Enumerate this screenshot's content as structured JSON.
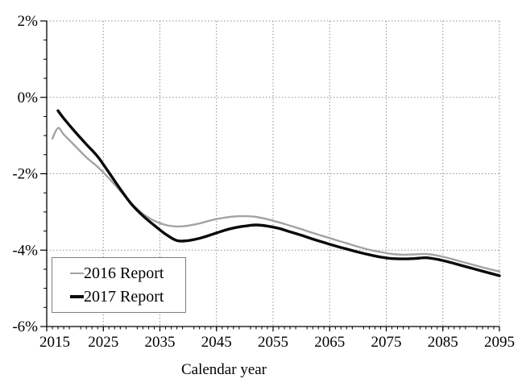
{
  "chart_data": {
    "type": "line",
    "title": "",
    "xlabel": "Calendar year",
    "ylabel": "",
    "x_axis": {
      "min": 2015,
      "max": 2095,
      "major_tick_interval": 10,
      "minor_tick_interval": 1,
      "tick_values": [
        2015,
        2025,
        2035,
        2045,
        2055,
        2065,
        2075,
        2085,
        2095
      ],
      "tick_labels": [
        "2015",
        "2025",
        "2035",
        "2045",
        "2055",
        "2065",
        "2075",
        "2085",
        "2095"
      ]
    },
    "y_axis": {
      "min": -6,
      "max": 2,
      "major_tick_interval": 2,
      "minor_tick_interval": 0.5,
      "tick_values": [
        2,
        0,
        -2,
        -4,
        -6
      ],
      "tick_labels": [
        "2%",
        "0%",
        "-2%",
        "-4%",
        "-6%"
      ],
      "unit": "percent"
    },
    "grid": {
      "style": "dotted",
      "color": "#8f8f8f",
      "major_only": true
    },
    "axis_color": "#000000",
    "legend_position": "lower-left",
    "series": [
      {
        "name": "2016 Report",
        "color": "#a3a3a3",
        "line_width": 2.4,
        "x": [
          2016,
          2017,
          2018,
          2020,
          2022,
          2024,
          2026,
          2028,
          2030,
          2032,
          2034,
          2036,
          2038,
          2040,
          2042,
          2044,
          2046,
          2048,
          2050,
          2052,
          2054,
          2056,
          2058,
          2060,
          2062,
          2064,
          2066,
          2068,
          2070,
          2072,
          2074,
          2076,
          2078,
          2080,
          2082,
          2084,
          2086,
          2088,
          2090,
          2092,
          2095
        ],
        "values": [
          -1.08,
          -0.8,
          -0.97,
          -1.27,
          -1.57,
          -1.82,
          -2.12,
          -2.45,
          -2.78,
          -3.05,
          -3.23,
          -3.34,
          -3.38,
          -3.36,
          -3.3,
          -3.22,
          -3.16,
          -3.12,
          -3.11,
          -3.13,
          -3.19,
          -3.27,
          -3.36,
          -3.45,
          -3.55,
          -3.64,
          -3.73,
          -3.82,
          -3.91,
          -3.99,
          -4.05,
          -4.1,
          -4.12,
          -4.11,
          -4.1,
          -4.14,
          -4.21,
          -4.29,
          -4.37,
          -4.45,
          -4.56
        ]
      },
      {
        "name": "2017 Report",
        "color": "#0a0a0a",
        "line_width": 3.4,
        "x": [
          2017,
          2018,
          2020,
          2022,
          2024,
          2026,
          2028,
          2030,
          2032,
          2034,
          2036,
          2038,
          2040,
          2042,
          2044,
          2046,
          2048,
          2050,
          2052,
          2054,
          2056,
          2058,
          2060,
          2062,
          2064,
          2066,
          2068,
          2070,
          2072,
          2074,
          2076,
          2078,
          2080,
          2082,
          2084,
          2086,
          2088,
          2090,
          2092,
          2095
        ],
        "values": [
          -0.35,
          -0.55,
          -0.9,
          -1.23,
          -1.55,
          -1.97,
          -2.4,
          -2.8,
          -3.1,
          -3.35,
          -3.58,
          -3.75,
          -3.75,
          -3.69,
          -3.6,
          -3.5,
          -3.42,
          -3.37,
          -3.34,
          -3.37,
          -3.43,
          -3.52,
          -3.61,
          -3.71,
          -3.8,
          -3.89,
          -3.97,
          -4.05,
          -4.12,
          -4.18,
          -4.22,
          -4.23,
          -4.22,
          -4.2,
          -4.24,
          -4.31,
          -4.39,
          -4.47,
          -4.55,
          -4.67
        ]
      }
    ]
  }
}
